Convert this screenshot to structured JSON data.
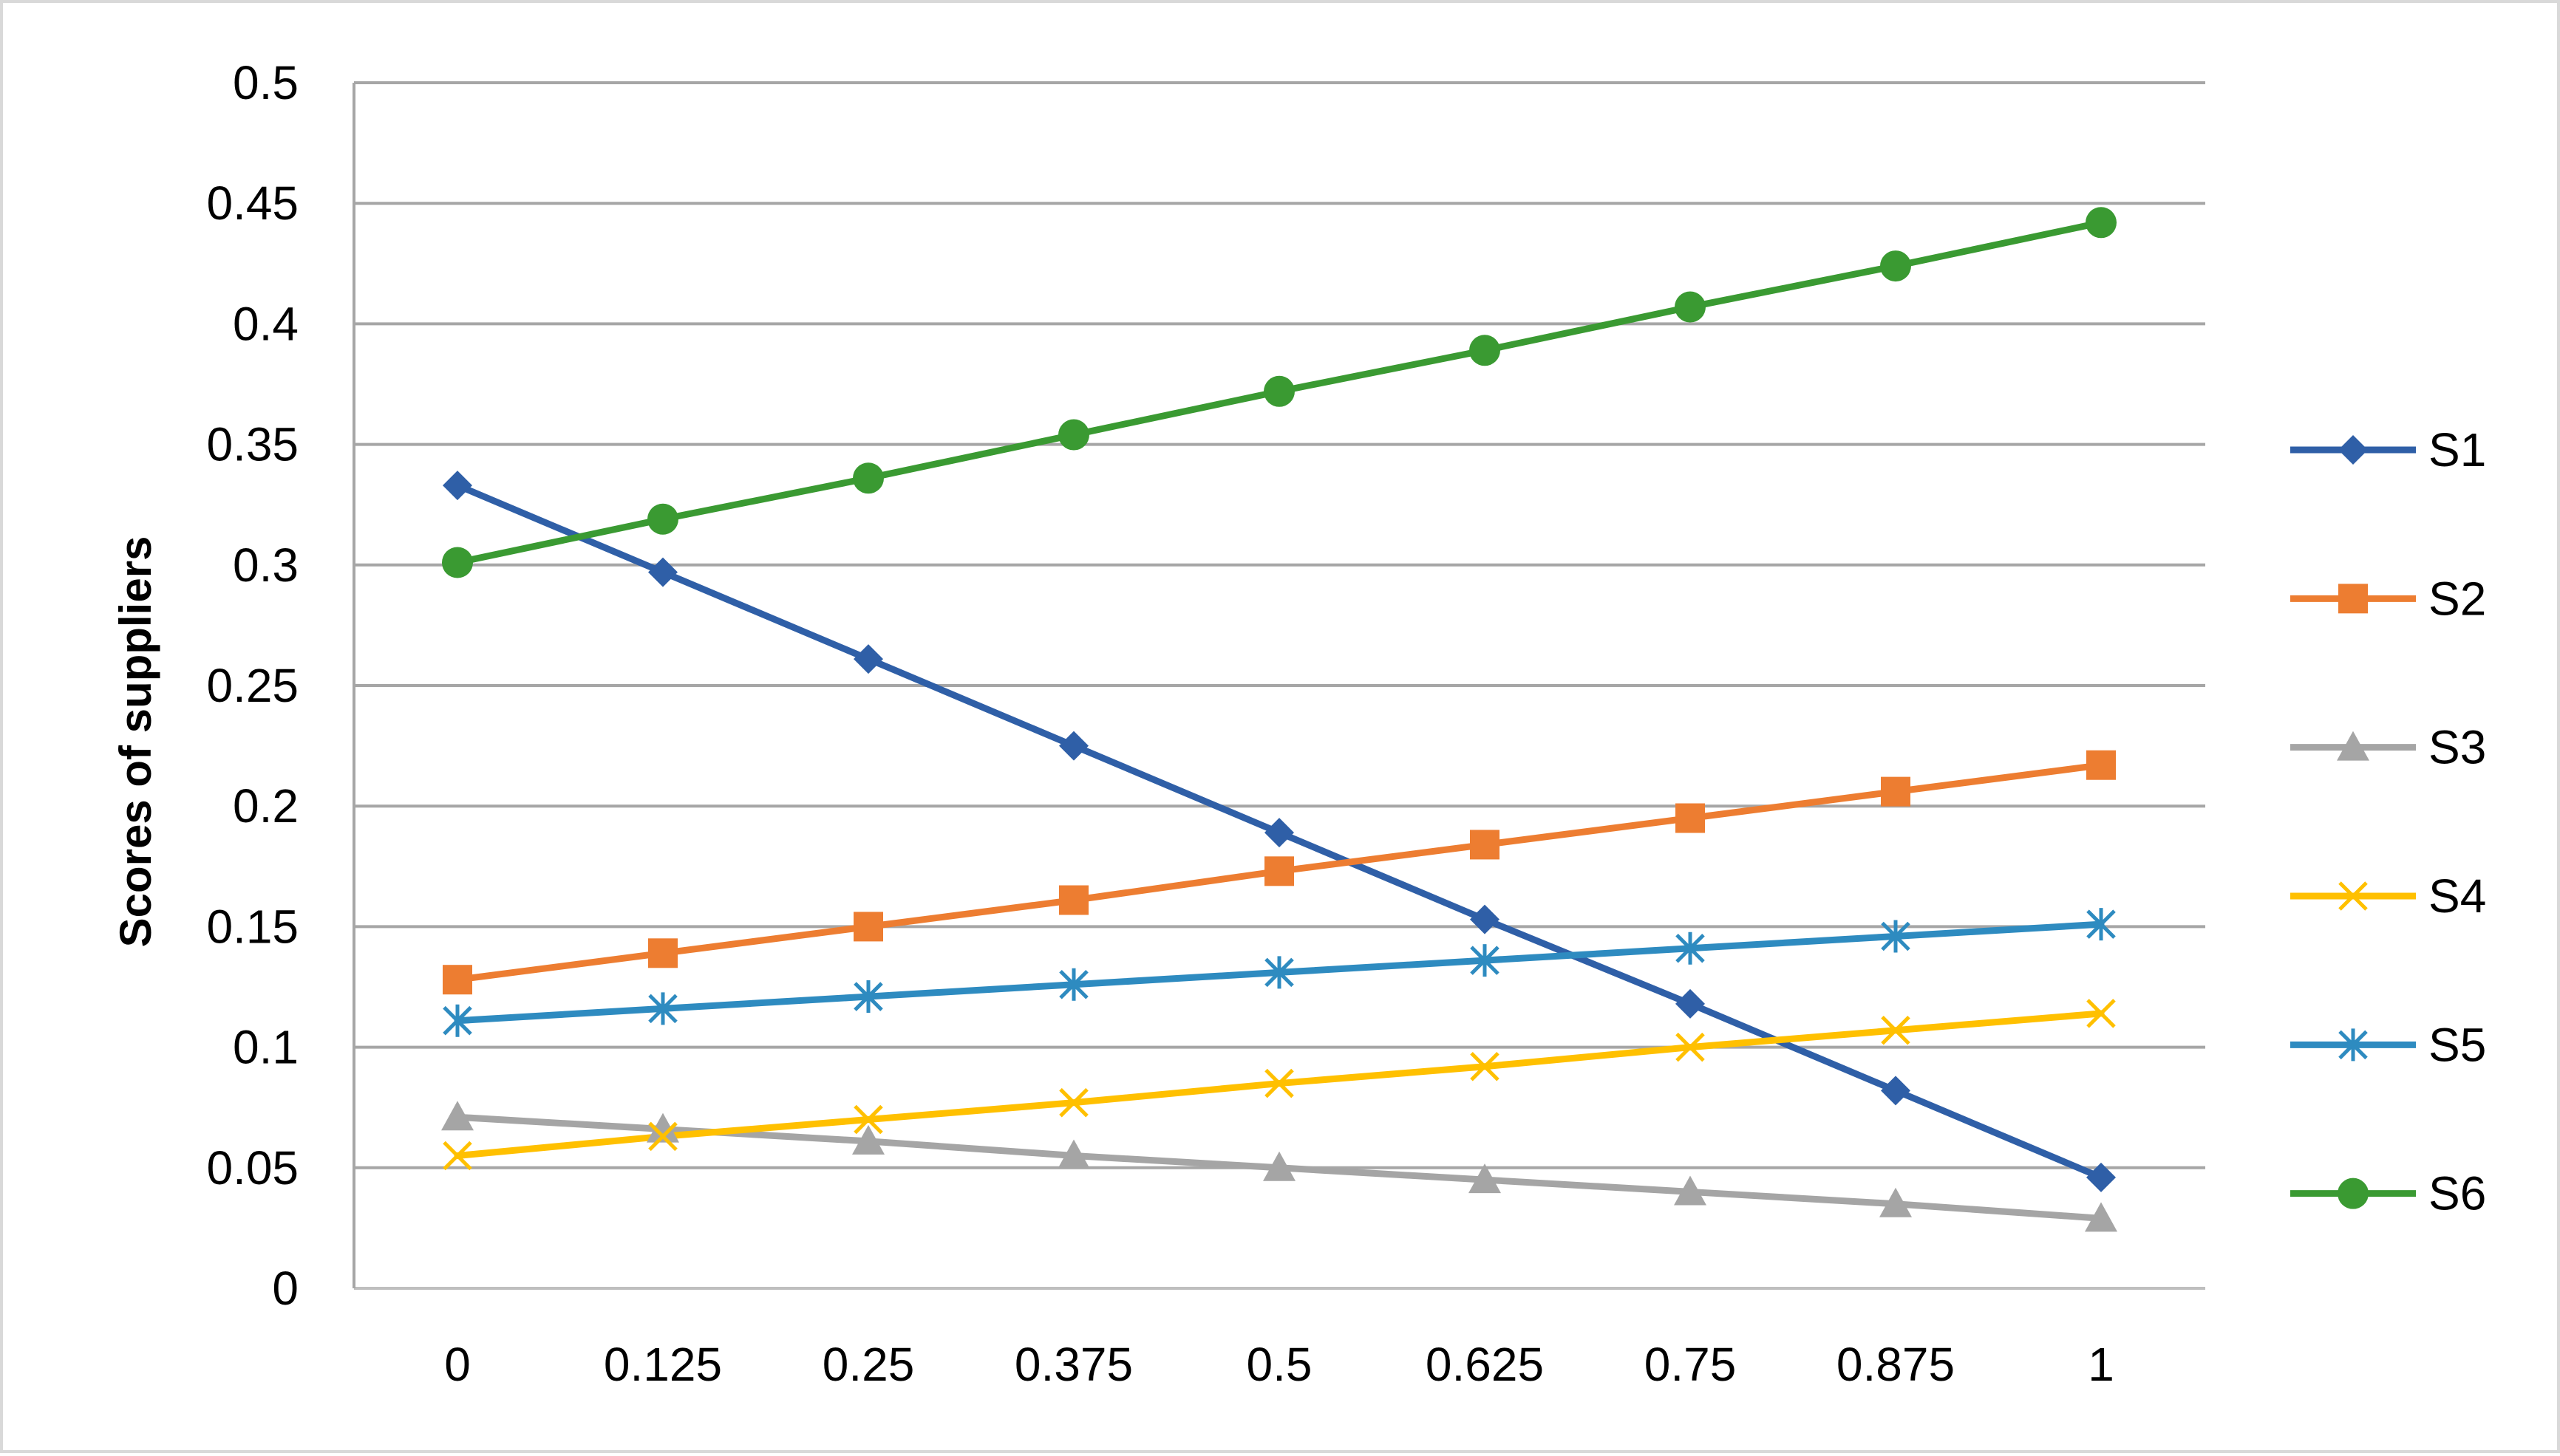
{
  "chart_data": {
    "type": "line",
    "title": "",
    "xlabel": "",
    "ylabel": "Scores of suppliers",
    "x": [
      "0",
      "0.125",
      "0.25",
      "0.375",
      "0.5",
      "0.625",
      "0.75",
      "0.875",
      "1"
    ],
    "ylim": [
      0,
      0.5
    ],
    "yticks": [
      "0",
      "0.05",
      "0.1",
      "0.15",
      "0.2",
      "0.25",
      "0.3",
      "0.35",
      "0.4",
      "0.45",
      "0.5"
    ],
    "grid": true,
    "legend_position": "right",
    "series": [
      {
        "name": "S1",
        "color": "#2F5FA7",
        "marker": "diamond",
        "values": [
          0.333,
          0.297,
          0.261,
          0.225,
          0.189,
          0.153,
          0.118,
          0.082,
          0.046
        ]
      },
      {
        "name": "S2",
        "color": "#ED7D31",
        "marker": "square",
        "values": [
          0.128,
          0.139,
          0.15,
          0.161,
          0.173,
          0.184,
          0.195,
          0.206,
          0.217
        ]
      },
      {
        "name": "S3",
        "color": "#A5A5A5",
        "marker": "triangle",
        "values": [
          0.071,
          0.066,
          0.061,
          0.055,
          0.05,
          0.045,
          0.04,
          0.035,
          0.029
        ]
      },
      {
        "name": "S4",
        "color": "#FFC000",
        "marker": "x",
        "values": [
          0.055,
          0.063,
          0.07,
          0.077,
          0.085,
          0.092,
          0.1,
          0.107,
          0.114
        ]
      },
      {
        "name": "S5",
        "color": "#2E8BC0",
        "marker": "star",
        "values": [
          0.111,
          0.116,
          0.121,
          0.126,
          0.131,
          0.136,
          0.141,
          0.146,
          0.151
        ]
      },
      {
        "name": "S6",
        "color": "#3A9A32",
        "marker": "circle",
        "values": [
          0.301,
          0.319,
          0.336,
          0.354,
          0.372,
          0.389,
          0.407,
          0.424,
          0.442
        ]
      }
    ]
  }
}
